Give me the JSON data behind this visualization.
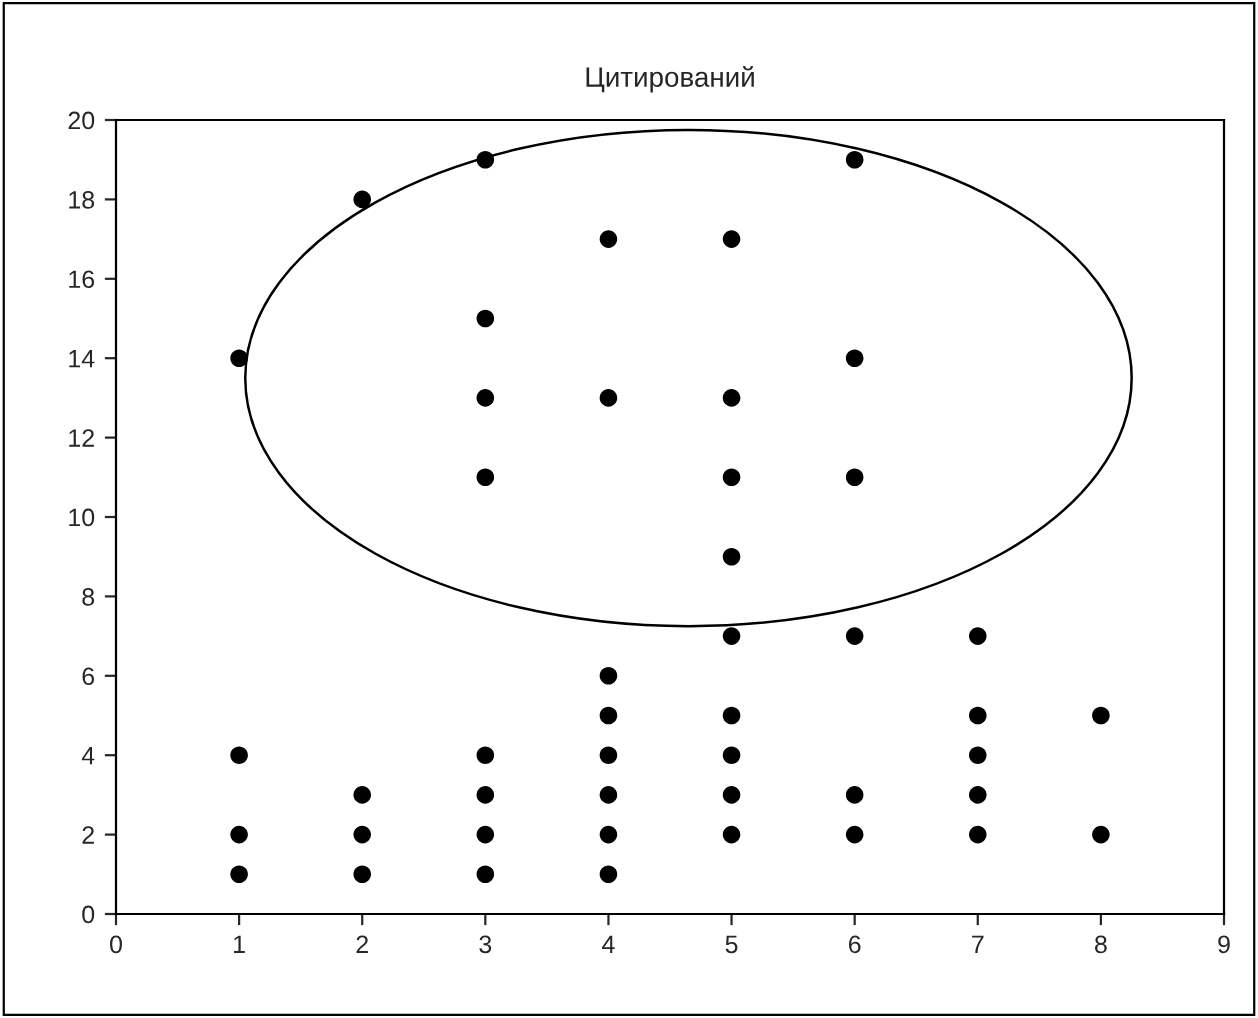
{
  "chart_data": {
    "type": "scatter",
    "title": "Цитирований",
    "x": [
      1,
      1,
      1,
      1,
      2,
      2,
      2,
      2,
      3,
      3,
      3,
      3,
      3,
      3,
      3,
      3,
      4,
      4,
      4,
      4,
      4,
      4,
      4,
      4,
      5,
      5,
      5,
      5,
      5,
      5,
      5,
      5,
      5,
      6,
      6,
      6,
      6,
      6,
      6,
      7,
      7,
      7,
      7,
      7,
      8,
      8
    ],
    "series": [
      {
        "color": "#000000",
        "values": [
          14,
          4,
          2,
          1,
          18,
          3,
          2,
          1,
          19,
          15,
          13,
          11,
          4,
          3,
          2,
          1,
          17,
          13,
          6,
          5,
          4,
          3,
          2,
          1,
          17,
          13,
          11,
          9,
          7,
          5,
          4,
          3,
          2,
          19,
          14,
          11,
          7,
          3,
          2,
          7,
          5,
          4,
          3,
          2,
          5,
          2
        ]
      }
    ],
    "xlim": [
      0,
      9
    ],
    "ylim": [
      0,
      20
    ],
    "xticks": [
      0,
      1,
      2,
      3,
      4,
      5,
      6,
      7,
      8,
      9
    ],
    "yticks": [
      0,
      2,
      4,
      6,
      8,
      10,
      12,
      14,
      16,
      18,
      20
    ],
    "marker": "circle",
    "grid": false,
    "legend": false
  }
}
